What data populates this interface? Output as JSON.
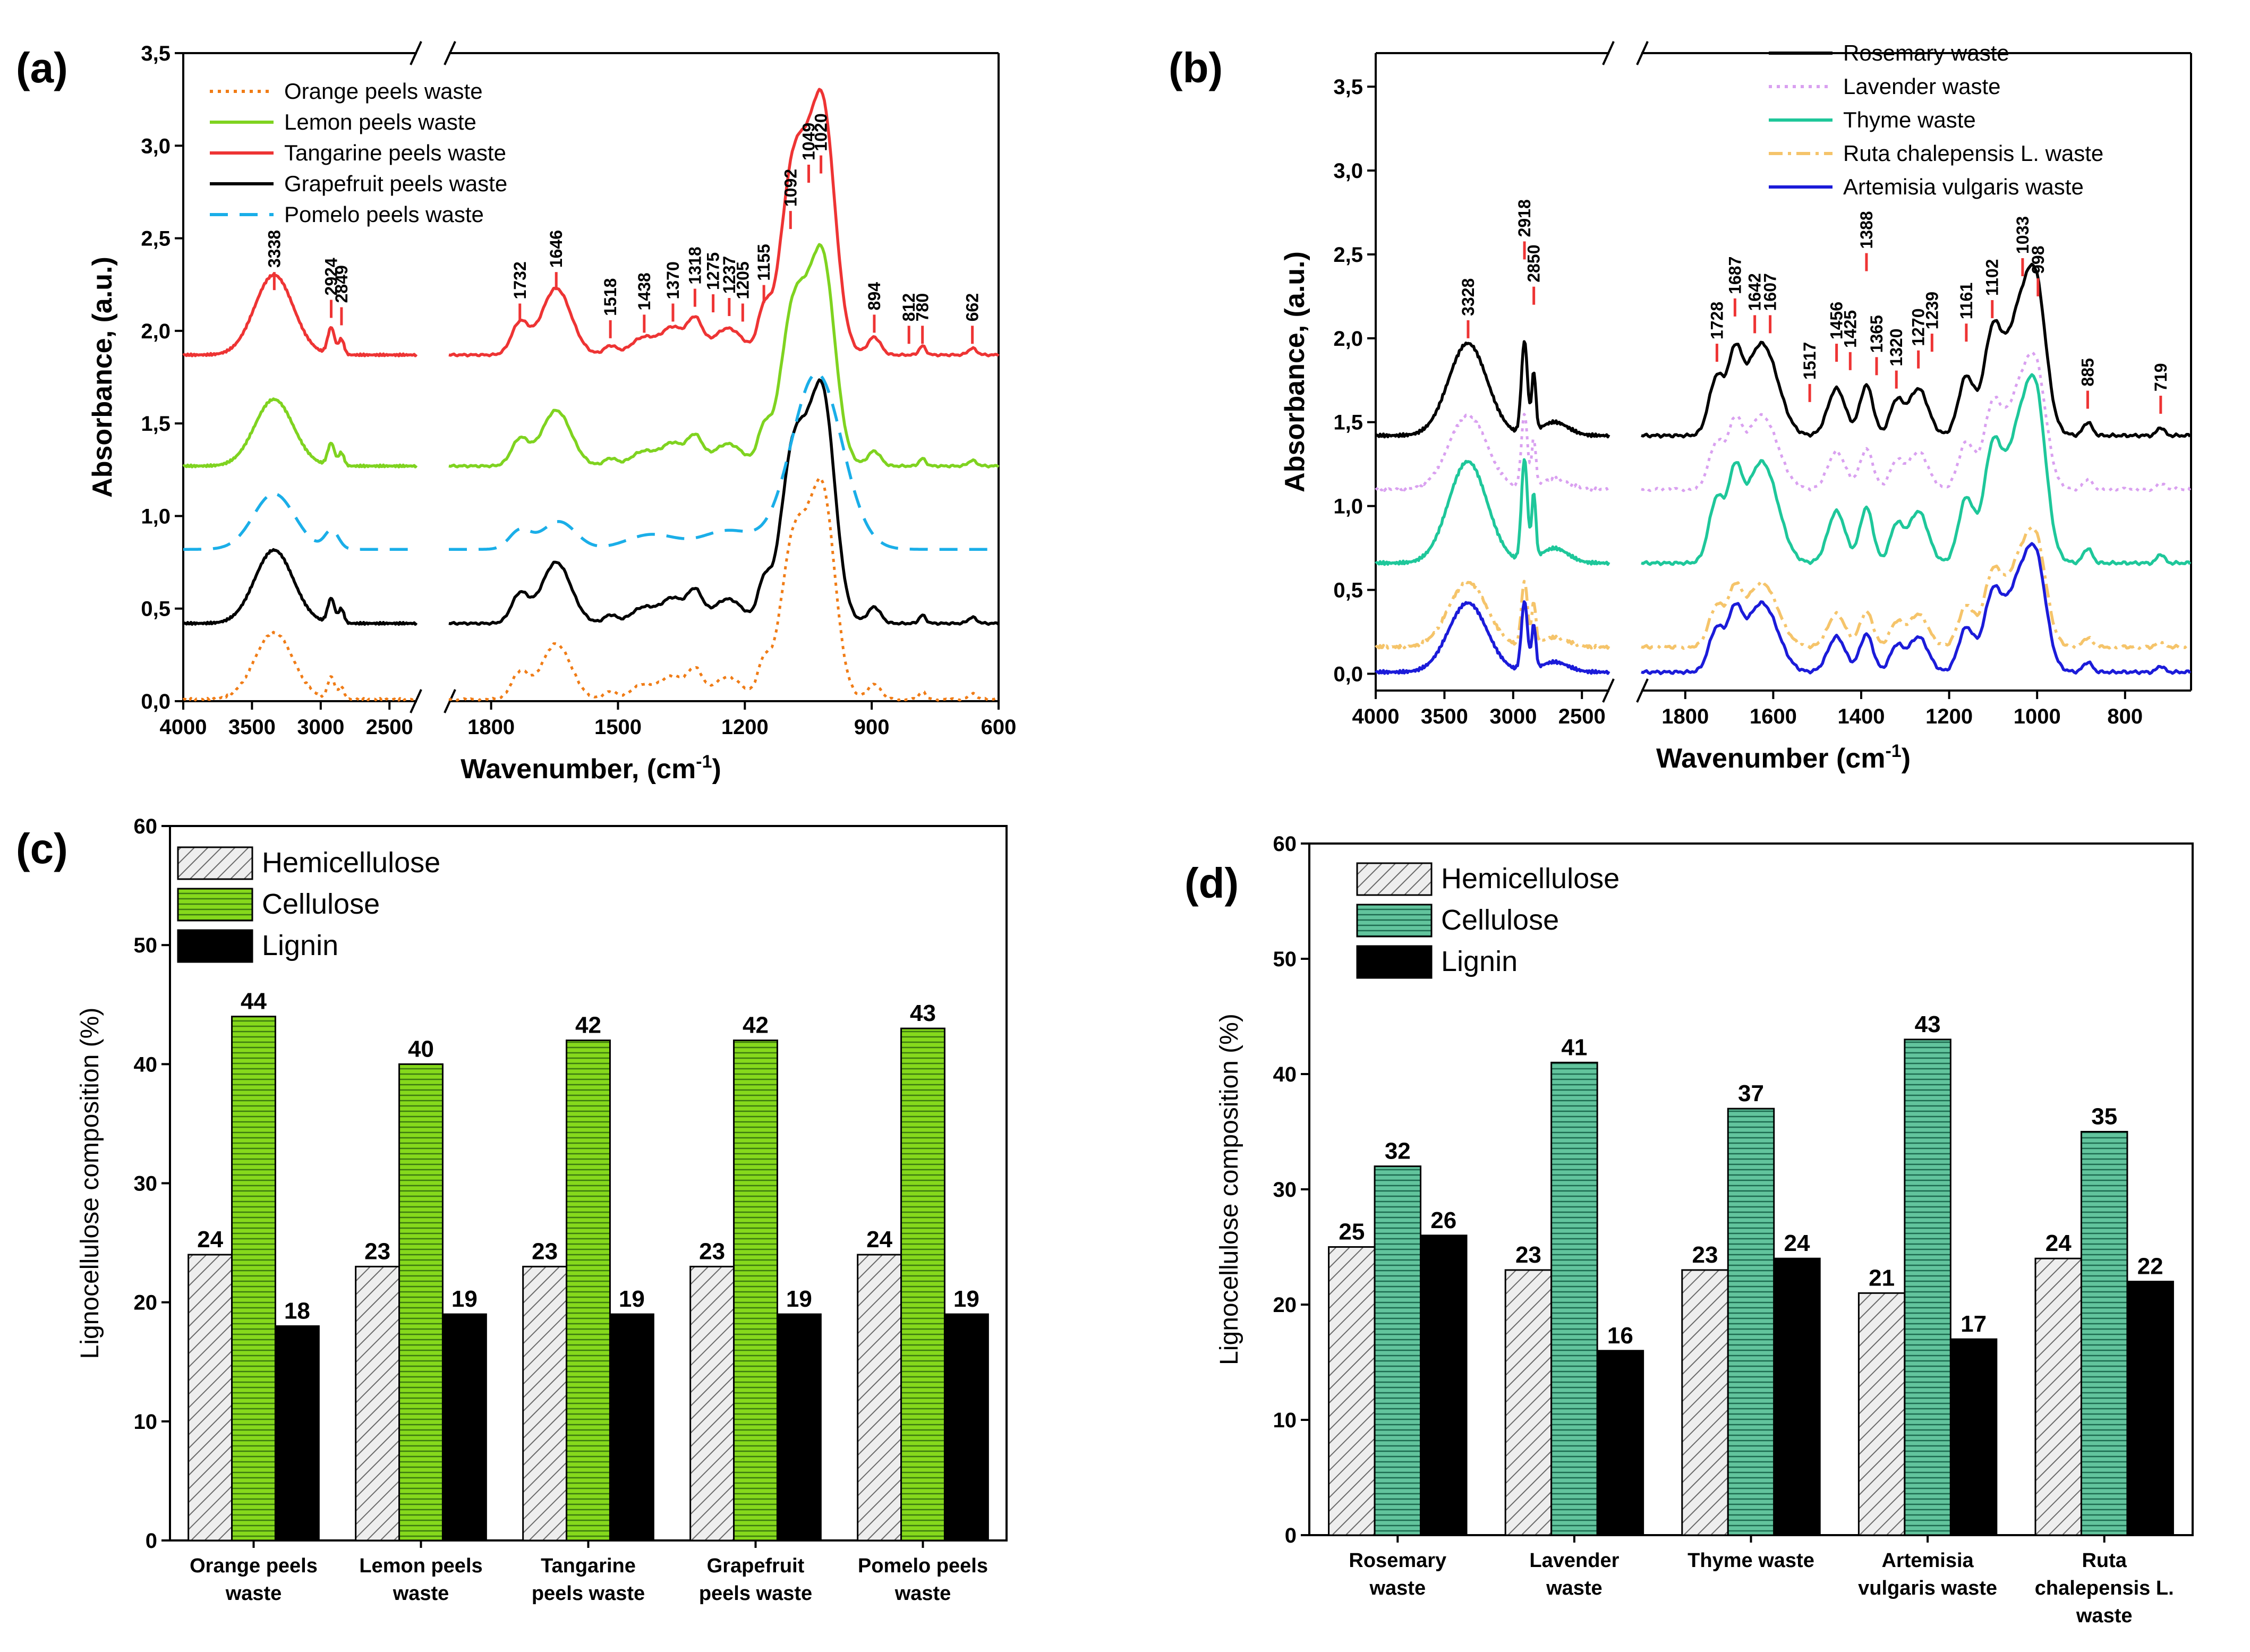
{
  "panels": {
    "a": "(a)",
    "b": "(b)",
    "c": "(c)",
    "d": "(d)"
  },
  "colors": {
    "orange": "#f07c16",
    "lemon": "#7fd320",
    "tangarine": "#ee3434",
    "grapefruit": "#000000",
    "pomelo": "#1aaee8",
    "rosemary": "#000000",
    "lavender": "#d9a0f0",
    "thyme": "#1ec79a",
    "ruta": "#f5c46a",
    "artemisia": "#1b1bd9",
    "cellulose_c": "#86d91c",
    "cellulose_d": "#5fc49c",
    "hemi": "#e6e6e6",
    "lignin": "#000000"
  },
  "chart_data": [
    {
      "id": "a",
      "type": "line",
      "xlabel": "Wavenumber, (cm",
      "xlabel_sup": "-1",
      "xlabel_end": ")",
      "ylabel": "Absorbance, (a.u.)",
      "ylim": [
        0,
        3.5
      ],
      "yticks": [
        "0,0",
        "0,5",
        "1,0",
        "1,5",
        "2,0",
        "2,5",
        "3,0",
        "3,5"
      ],
      "xticks_left": [
        "4000",
        "3500",
        "3000",
        "2500"
      ],
      "xticks_right": [
        "1800",
        "1500",
        "1200",
        "900",
        "600"
      ],
      "xrange_left": [
        4000,
        2300
      ],
      "xrange_right": [
        1900,
        600
      ],
      "series": [
        {
          "name": "Orange peels waste",
          "color": "orange",
          "dash": "dot"
        },
        {
          "name": "Lemon peels waste",
          "color": "lemon",
          "dash": "solid"
        },
        {
          "name": "Tangarine peels waste",
          "color": "tangarine",
          "dash": "solid"
        },
        {
          "name": "Grapefruit peels waste",
          "color": "grapefruit",
          "dash": "solid"
        },
        {
          "name": "Pomelo peels waste",
          "color": "pomelo",
          "dash": "dash"
        }
      ],
      "peaks": [
        "3338",
        "2924",
        "2849",
        "1732",
        "1646",
        "1518",
        "1438",
        "1370",
        "1318",
        "1275",
        "1237",
        "1205",
        "1155",
        "1092",
        "1049",
        "1020",
        "894",
        "812",
        "780",
        "662"
      ]
    },
    {
      "id": "b",
      "type": "line",
      "xlabel": "Wavenumber (cm",
      "xlabel_sup": "-1",
      "xlabel_end": ")",
      "ylabel": "Absorbance, (a.u.)",
      "ylim": [
        -0.1,
        3.7
      ],
      "yticks": [
        "0,0",
        "0,5",
        "1,0",
        "1,5",
        "2,0",
        "2,5",
        "3,0",
        "3,5"
      ],
      "xticks_left": [
        "4000",
        "3500",
        "3000",
        "2500"
      ],
      "xticks_right": [
        "1800",
        "1600",
        "1400",
        "1200",
        "1000",
        "800"
      ],
      "xrange_left": [
        4000,
        2300
      ],
      "xrange_right": [
        1900,
        650
      ],
      "series": [
        {
          "name": "Rosemary waste",
          "color": "rosemary",
          "dash": "solid"
        },
        {
          "name": "Lavender waste",
          "color": "lavender",
          "dash": "dot"
        },
        {
          "name": "Thyme waste",
          "color": "thyme",
          "dash": "solid"
        },
        {
          "name": "Ruta chalepensis L. waste",
          "color": "ruta",
          "dash": "dashdot"
        },
        {
          "name": "Artemisia vulgaris waste",
          "color": "artemisia",
          "dash": "solid"
        }
      ],
      "peaks": [
        "3328",
        "2918",
        "2850",
        "1728",
        "1687",
        "1642",
        "1607",
        "1517",
        "1456",
        "1425",
        "1388",
        "1365",
        "1320",
        "1270",
        "1239",
        "1161",
        "1102",
        "1033",
        "998",
        "885",
        "719"
      ]
    },
    {
      "id": "c",
      "type": "bar",
      "ylabel": "Lignocellulose composition (%)",
      "ylim": [
        0,
        60
      ],
      "yticks": [
        "0",
        "10",
        "20",
        "30",
        "40",
        "50",
        "60"
      ],
      "categories": [
        [
          "Orange peels",
          "waste"
        ],
        [
          "Lemon peels",
          "waste"
        ],
        [
          "Tangarine",
          "peels waste"
        ],
        [
          "Grapefruit",
          "peels waste"
        ],
        [
          "Pomelo peels",
          "waste"
        ]
      ],
      "series": [
        {
          "name": "Hemicellulose",
          "values": [
            24,
            23,
            23,
            23,
            24
          ]
        },
        {
          "name": "Cellulose",
          "values": [
            44,
            40,
            42,
            42,
            43
          ]
        },
        {
          "name": "Lignin",
          "values": [
            18,
            19,
            19,
            19,
            19
          ]
        }
      ]
    },
    {
      "id": "d",
      "type": "bar",
      "ylabel": "Lignocellulose composition (%)",
      "ylim": [
        0,
        60
      ],
      "yticks": [
        "0",
        "10",
        "20",
        "30",
        "40",
        "50",
        "60"
      ],
      "categories": [
        [
          "Rosemary",
          "waste"
        ],
        [
          "Lavender",
          "waste"
        ],
        [
          "Thyme waste"
        ],
        [
          "Artemisia",
          "vulgaris waste"
        ],
        [
          "Ruta",
          "chalepensis L.",
          "waste"
        ]
      ],
      "series": [
        {
          "name": "Hemicellulose",
          "values": [
            25,
            23,
            23,
            21,
            24
          ]
        },
        {
          "name": "Cellulose",
          "values": [
            32,
            41,
            37,
            43,
            35
          ]
        },
        {
          "name": "Lignin",
          "values": [
            26,
            16,
            24,
            17,
            22
          ]
        }
      ]
    }
  ]
}
